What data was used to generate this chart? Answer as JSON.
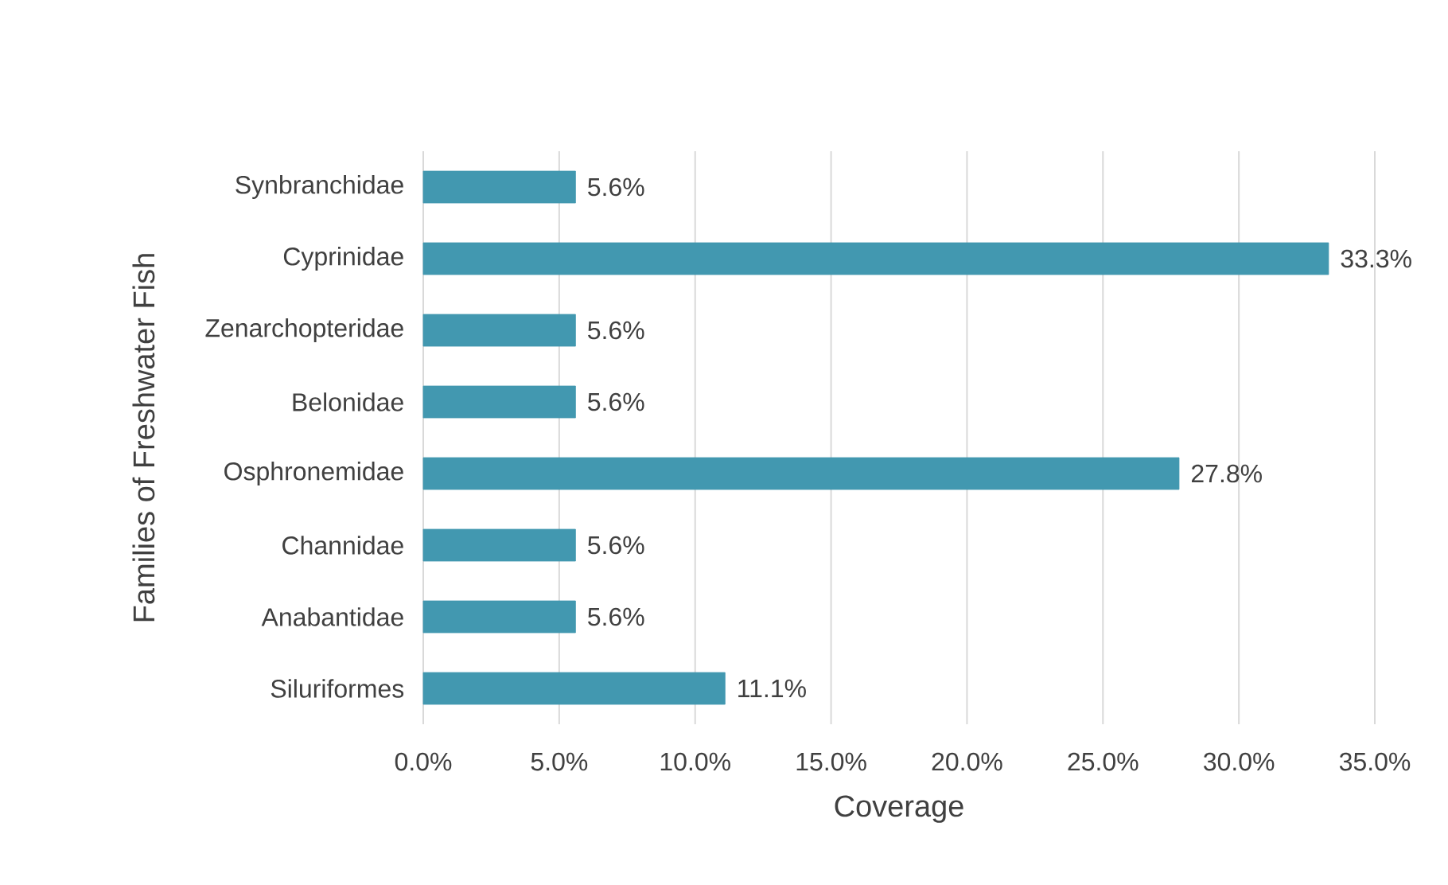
{
  "chart_data": {
    "type": "bar",
    "orientation": "horizontal",
    "xlabel": "Coverage",
    "ylabel": "Families of Freshwater Fish",
    "categories": [
      "Synbranchidae",
      "Cyprinidae",
      "Zenarchopteridae",
      "Belonidae",
      "Osphronemidae",
      "Channidae",
      "Anabantidae",
      "Siluriformes"
    ],
    "values": [
      5.6,
      33.3,
      5.6,
      5.6,
      27.8,
      5.6,
      5.6,
      11.1
    ],
    "value_labels": [
      "5.6%",
      "33.3%",
      "5.6%",
      "5.6%",
      "27.8%",
      "5.6%",
      "5.6%",
      "11.1%"
    ],
    "color": "#4298b0",
    "xlim": [
      0,
      35
    ],
    "xticks": [
      {
        "value": 0,
        "label": "0.0%"
      },
      {
        "value": 5,
        "label": "5.0%"
      },
      {
        "value": 10,
        "label": "10.0%"
      },
      {
        "value": 15,
        "label": "15.0%"
      },
      {
        "value": 20,
        "label": "20.0%"
      },
      {
        "value": 25,
        "label": "25.0%"
      },
      {
        "value": 30,
        "label": "30.0%"
      },
      {
        "value": 35,
        "label": "35.0%"
      }
    ],
    "grid": "x"
  }
}
